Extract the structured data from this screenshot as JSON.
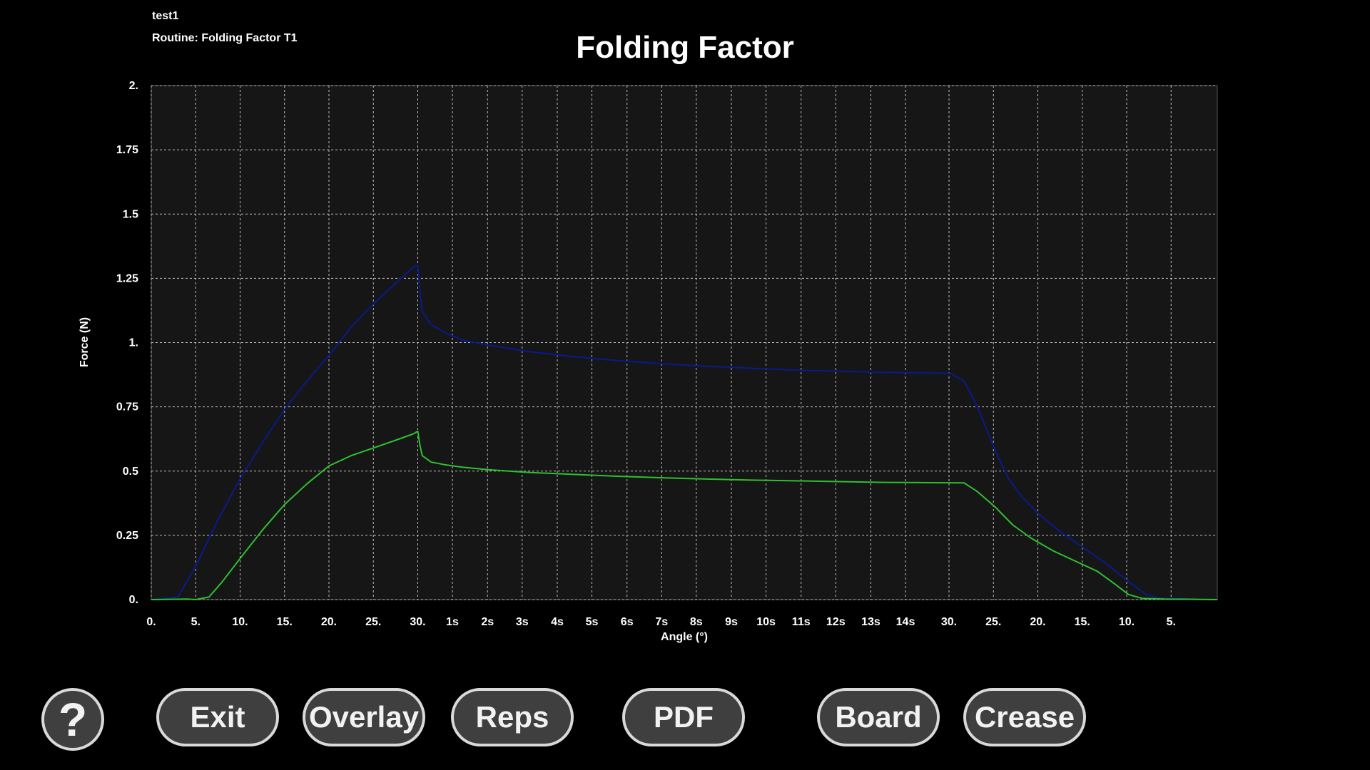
{
  "header": {
    "test_name": "test1",
    "routine": "Routine: Folding Factor T1"
  },
  "buttons": {
    "help": "?",
    "exit": "Exit",
    "overlay": "Overlay",
    "reps": "Reps",
    "pdf": "PDF",
    "board": "Board",
    "crease": "Crease"
  },
  "colors": {
    "background": "#000000",
    "plot_background": "#161616",
    "grid": "#bfbfbf",
    "series_blue": "#0a1a8c",
    "series_green": "#2ec02e"
  },
  "chart_data": {
    "type": "line",
    "title": "Folding Factor",
    "xlabel": "Angle (°)",
    "ylabel": "Force (N)",
    "ylim": [
      0,
      2
    ],
    "xlim": [
      0,
      24
    ],
    "grid": true,
    "yticks": [
      {
        "v": 0,
        "label": "0."
      },
      {
        "v": 0.25,
        "label": "0.25"
      },
      {
        "v": 0.5,
        "label": "0.5"
      },
      {
        "v": 0.75,
        "label": "0.75"
      },
      {
        "v": 1,
        "label": "1."
      },
      {
        "v": 1.25,
        "label": "1.25"
      },
      {
        "v": 1.5,
        "label": "1.5"
      },
      {
        "v": 1.75,
        "label": "1.75"
      },
      {
        "v": 2,
        "label": "2."
      }
    ],
    "xticks": [
      {
        "v": 0,
        "label": "0."
      },
      {
        "v": 1,
        "label": "5."
      },
      {
        "v": 2,
        "label": "10."
      },
      {
        "v": 3,
        "label": "15."
      },
      {
        "v": 4,
        "label": "20."
      },
      {
        "v": 5,
        "label": "25."
      },
      {
        "v": 6,
        "label": "30."
      },
      {
        "v": 6.78,
        "label": "1s"
      },
      {
        "v": 7.57,
        "label": "2s"
      },
      {
        "v": 8.35,
        "label": "3s"
      },
      {
        "v": 9.14,
        "label": "4s"
      },
      {
        "v": 9.92,
        "label": "5s"
      },
      {
        "v": 10.71,
        "label": "6s"
      },
      {
        "v": 11.49,
        "label": "7s"
      },
      {
        "v": 12.27,
        "label": "8s"
      },
      {
        "v": 13.06,
        "label": "9s"
      },
      {
        "v": 13.84,
        "label": "10s"
      },
      {
        "v": 14.63,
        "label": "11s"
      },
      {
        "v": 15.41,
        "label": "12s"
      },
      {
        "v": 16.2,
        "label": "13s"
      },
      {
        "v": 16.98,
        "label": "14s"
      },
      {
        "v": 17.96,
        "label": "30."
      },
      {
        "v": 18.96,
        "label": "25."
      },
      {
        "v": 19.96,
        "label": "20."
      },
      {
        "v": 20.96,
        "label": "15."
      },
      {
        "v": 21.96,
        "label": "10."
      },
      {
        "v": 22.96,
        "label": "5."
      }
    ],
    "series": [
      {
        "color": "#0a1a8c",
        "points": [
          [
            0,
            0
          ],
          [
            0.4,
            0.005
          ],
          [
            0.6,
            0.01
          ],
          [
            0.8,
            0.07
          ],
          [
            1,
            0.13
          ],
          [
            1.5,
            0.31
          ],
          [
            2,
            0.47
          ],
          [
            2.5,
            0.61
          ],
          [
            3,
            0.74
          ],
          [
            3.5,
            0.85
          ],
          [
            4,
            0.95
          ],
          [
            4.5,
            1.06
          ],
          [
            5,
            1.15
          ],
          [
            5.5,
            1.23
          ],
          [
            5.9,
            1.295
          ],
          [
            6,
            1.3
          ],
          [
            6.05,
            1.2
          ],
          [
            6.1,
            1.12
          ],
          [
            6.3,
            1.07
          ],
          [
            6.6,
            1.04
          ],
          [
            7,
            1.01
          ],
          [
            7.6,
            0.99
          ],
          [
            8.5,
            0.965
          ],
          [
            9.5,
            0.945
          ],
          [
            10.5,
            0.93
          ],
          [
            11.5,
            0.918
          ],
          [
            12.5,
            0.908
          ],
          [
            13.5,
            0.9
          ],
          [
            14.5,
            0.893
          ],
          [
            15.5,
            0.888
          ],
          [
            16.5,
            0.884
          ],
          [
            17.5,
            0.882
          ],
          [
            18,
            0.88
          ],
          [
            18.3,
            0.85
          ],
          [
            18.6,
            0.75
          ],
          [
            19,
            0.58
          ],
          [
            19.3,
            0.47
          ],
          [
            19.6,
            0.4
          ],
          [
            20,
            0.33
          ],
          [
            20.5,
            0.26
          ],
          [
            21,
            0.2
          ],
          [
            21.5,
            0.14
          ],
          [
            22,
            0.07
          ],
          [
            22.4,
            0.02
          ],
          [
            22.7,
            0.005
          ],
          [
            23.5,
            0.002
          ]
        ]
      },
      {
        "color": "#2ec02e",
        "points": [
          [
            0,
            0
          ],
          [
            0.8,
            0.002
          ],
          [
            1,
            0.0
          ],
          [
            1.3,
            0.01
          ],
          [
            1.6,
            0.07
          ],
          [
            2,
            0.16
          ],
          [
            2.5,
            0.27
          ],
          [
            3,
            0.37
          ],
          [
            3.5,
            0.45
          ],
          [
            4,
            0.52
          ],
          [
            4.5,
            0.56
          ],
          [
            5,
            0.59
          ],
          [
            5.5,
            0.62
          ],
          [
            5.9,
            0.645
          ],
          [
            6,
            0.655
          ],
          [
            6.05,
            0.6
          ],
          [
            6.1,
            0.56
          ],
          [
            6.3,
            0.535
          ],
          [
            6.6,
            0.525
          ],
          [
            7,
            0.515
          ],
          [
            7.6,
            0.505
          ],
          [
            8.5,
            0.495
          ],
          [
            9.5,
            0.487
          ],
          [
            10.5,
            0.48
          ],
          [
            11.5,
            0.474
          ],
          [
            12.5,
            0.469
          ],
          [
            13.5,
            0.465
          ],
          [
            14.5,
            0.462
          ],
          [
            15.5,
            0.459
          ],
          [
            16.5,
            0.456
          ],
          [
            17.5,
            0.455
          ],
          [
            18.3,
            0.454
          ],
          [
            18.6,
            0.42
          ],
          [
            19,
            0.36
          ],
          [
            19.4,
            0.29
          ],
          [
            19.8,
            0.24
          ],
          [
            20.3,
            0.19
          ],
          [
            20.8,
            0.15
          ],
          [
            21.3,
            0.11
          ],
          [
            21.7,
            0.06
          ],
          [
            22,
            0.02
          ],
          [
            22.3,
            0.005
          ],
          [
            22.8,
            0.002
          ],
          [
            23.5,
            0.001
          ],
          [
            24,
            0
          ]
        ]
      }
    ]
  }
}
